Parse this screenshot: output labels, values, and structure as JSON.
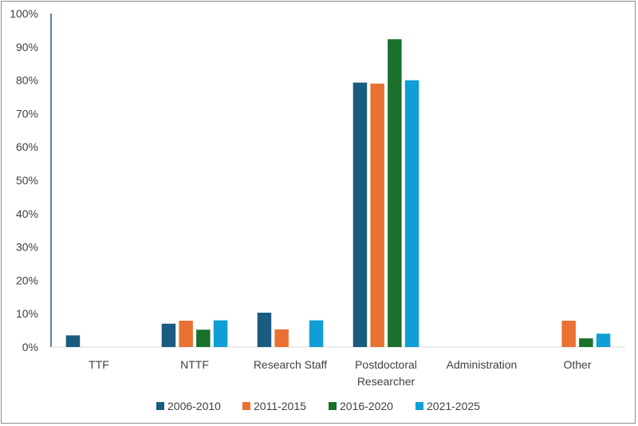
{
  "chart_data": {
    "type": "bar",
    "categories": [
      [
        "TTF"
      ],
      [
        "NTTF"
      ],
      [
        "Research Staff"
      ],
      [
        "Postdoctoral",
        "Researcher"
      ],
      [
        "Administration"
      ],
      [
        "Other"
      ]
    ],
    "series": [
      {
        "name": "2006-2010",
        "color": "#1a5b80",
        "values": [
          3.5,
          7.0,
          10.3,
          79.3,
          0,
          0
        ]
      },
      {
        "name": "2011-2015",
        "color": "#e97132",
        "values": [
          0,
          7.9,
          5.3,
          79.0,
          0,
          7.9
        ]
      },
      {
        "name": "2016-2020",
        "color": "#19712b",
        "values": [
          0,
          5.2,
          0,
          92.3,
          0,
          2.6
        ]
      },
      {
        "name": "2021-2025",
        "color": "#0f9ed5",
        "values": [
          0,
          8.0,
          8.0,
          80.0,
          0,
          4.0
        ]
      }
    ],
    "yticks": [
      "0%",
      "10%",
      "20%",
      "30%",
      "40%",
      "50%",
      "60%",
      "70%",
      "80%",
      "90%",
      "100%"
    ],
    "ylim": [
      0,
      100
    ],
    "grid": false,
    "legend_position": "bottom",
    "title": "",
    "xlabel": "",
    "ylabel": ""
  }
}
